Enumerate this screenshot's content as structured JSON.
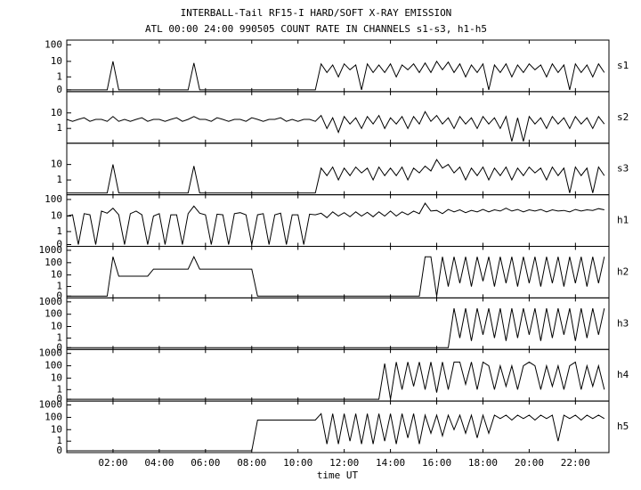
{
  "chart_data": {
    "type": "line",
    "title": "INTERBALL-Tail RF15-I HARD/SOFT X-RAY EMISSION",
    "subtitle": "ATL 00:00 24:00 990505  COUNT RATE IN CHANNELS s1-s3, h1-h5",
    "xlabel": "time UT",
    "yscale": "log",
    "color": "#000000",
    "xlim": [
      0,
      23.45
    ],
    "xticks": [
      {
        "value": 2,
        "label": "02:00"
      },
      {
        "value": 4,
        "label": "04:00"
      },
      {
        "value": 6,
        "label": "06:00"
      },
      {
        "value": 8,
        "label": "08:00"
      },
      {
        "value": 10,
        "label": "10:00"
      },
      {
        "value": 12,
        "label": "12:00"
      },
      {
        "value": 14,
        "label": "14:00"
      },
      {
        "value": 16,
        "label": "16:00"
      },
      {
        "value": 18,
        "label": "18:00"
      },
      {
        "value": 20,
        "label": "20:00"
      },
      {
        "value": 22,
        "label": "22:00"
      }
    ],
    "x": [
      0,
      0.25,
      0.5,
      0.75,
      1,
      1.25,
      1.5,
      1.75,
      2,
      2.25,
      2.5,
      2.75,
      3,
      3.25,
      3.5,
      3.75,
      4,
      4.25,
      4.5,
      4.75,
      5,
      5.25,
      5.5,
      5.75,
      6,
      6.25,
      6.5,
      6.75,
      7,
      7.25,
      7.5,
      7.75,
      8,
      8.25,
      8.5,
      8.75,
      9,
      9.25,
      9.5,
      9.75,
      10,
      10.25,
      10.5,
      10.75,
      11,
      11.25,
      11.5,
      11.75,
      12,
      12.25,
      12.5,
      12.75,
      13,
      13.25,
      13.5,
      13.75,
      14,
      14.25,
      14.5,
      14.75,
      15,
      15.25,
      15.5,
      15.75,
      16,
      16.25,
      16.5,
      16.75,
      17,
      17.25,
      17.5,
      17.75,
      18,
      18.25,
      18.5,
      18.75,
      19,
      19.25,
      19.5,
      19.75,
      20,
      20.25,
      20.5,
      20.75,
      21,
      21.25,
      21.5,
      21.75,
      22,
      22.25,
      22.5,
      22.75,
      23,
      23.25
    ],
    "series": [
      {
        "name": "s1",
        "ylim": [
          0,
          150
        ],
        "yticks": [
          0,
          1,
          10,
          100
        ],
        "values": [
          0,
          0,
          0,
          0,
          0,
          0,
          0,
          0,
          10,
          0,
          0,
          0,
          0,
          0,
          0,
          0,
          0,
          0,
          0,
          0,
          0,
          0,
          8,
          0,
          0,
          0,
          0,
          0,
          0,
          0,
          0,
          0,
          0,
          0,
          0,
          0,
          0,
          0,
          0,
          0,
          0,
          0,
          0,
          0,
          7,
          2,
          6,
          1,
          7,
          3,
          6,
          0,
          7,
          2,
          6,
          2,
          7,
          1,
          6,
          3,
          7,
          2,
          8,
          2,
          10,
          3,
          9,
          2,
          7,
          1,
          6,
          2,
          7,
          0,
          6,
          2,
          7,
          1,
          6,
          2,
          7,
          3,
          6,
          1,
          7,
          2,
          6,
          0,
          7,
          2,
          6,
          1,
          7,
          2
        ]
      },
      {
        "name": "s2",
        "ylim": [
          0,
          150
        ],
        "yticks": [
          1,
          10
        ],
        "values": [
          4,
          3,
          4,
          5,
          3,
          4,
          4,
          3,
          6,
          3,
          4,
          3,
          4,
          5,
          3,
          4,
          4,
          3,
          4,
          5,
          3,
          4,
          6,
          4,
          4,
          3,
          5,
          4,
          3,
          4,
          4,
          3,
          5,
          4,
          3,
          4,
          4,
          5,
          3,
          4,
          3,
          4,
          4,
          3,
          7,
          1,
          5,
          0.5,
          6,
          2,
          5,
          1,
          6,
          2,
          7,
          1,
          5,
          2,
          6,
          1,
          6,
          2,
          12,
          3,
          7,
          2,
          5,
          1,
          6,
          2,
          5,
          1,
          6,
          2,
          5,
          1,
          6,
          0,
          5,
          0,
          6,
          2,
          5,
          1,
          6,
          2,
          5,
          1,
          6,
          2,
          5,
          1,
          6,
          2
        ]
      },
      {
        "name": "s3",
        "ylim": [
          0,
          150
        ],
        "yticks": [
          1,
          10
        ],
        "values": [
          0,
          0,
          0,
          0,
          0,
          0,
          0,
          0,
          10,
          0,
          0,
          0,
          0,
          0,
          0,
          0,
          0,
          0,
          0,
          0,
          0,
          0,
          8,
          0,
          0,
          0,
          0,
          0,
          0,
          0,
          0,
          0,
          0,
          0,
          0,
          0,
          0,
          0,
          0,
          0,
          0,
          0,
          0,
          0,
          6,
          2,
          7,
          1,
          6,
          2,
          7,
          3,
          6,
          1,
          7,
          2,
          6,
          2,
          7,
          1,
          6,
          3,
          8,
          4,
          20,
          6,
          10,
          3,
          7,
          1,
          6,
          2,
          7,
          1,
          6,
          2,
          7,
          1,
          6,
          2,
          7,
          3,
          6,
          1,
          7,
          2,
          6,
          0,
          7,
          2,
          6,
          0,
          7,
          2
        ]
      },
      {
        "name": "h1",
        "ylim": [
          0,
          150
        ],
        "yticks": [
          0,
          1,
          10,
          100
        ],
        "values": [
          10,
          12,
          0,
          14,
          12,
          0,
          20,
          15,
          30,
          12,
          0,
          14,
          20,
          12,
          0,
          10,
          14,
          0,
          12,
          12,
          0,
          14,
          40,
          15,
          12,
          0,
          13,
          12,
          0,
          14,
          16,
          12,
          0,
          12,
          14,
          0,
          12,
          15,
          0,
          12,
          12,
          0,
          13,
          12,
          15,
          8,
          18,
          10,
          16,
          9,
          18,
          10,
          17,
          9,
          18,
          10,
          20,
          10,
          18,
          12,
          20,
          14,
          60,
          20,
          22,
          14,
          25,
          18,
          24,
          16,
          22,
          18,
          25,
          18,
          24,
          20,
          30,
          20,
          25,
          18,
          24,
          20,
          25,
          18,
          24,
          20,
          22,
          18,
          25,
          20,
          24,
          22,
          28,
          24
        ]
      },
      {
        "name": "h2",
        "ylim": [
          0,
          1500
        ],
        "yticks": [
          0,
          1,
          10,
          100,
          1000
        ],
        "values": [
          0,
          0,
          0,
          0,
          0,
          0,
          0,
          0,
          300,
          8,
          8,
          8,
          8,
          8,
          8,
          30,
          30,
          30,
          30,
          30,
          30,
          30,
          300,
          30,
          30,
          30,
          30,
          30,
          30,
          30,
          30,
          30,
          30,
          0,
          0,
          0,
          0,
          0,
          0,
          0,
          0,
          0,
          0,
          0,
          0,
          0,
          0,
          0,
          0,
          0,
          0,
          0,
          0,
          0,
          0,
          0,
          0,
          0,
          0,
          0,
          0,
          0,
          300,
          300,
          0,
          300,
          1,
          300,
          2,
          300,
          1,
          300,
          3,
          300,
          1,
          300,
          2,
          300,
          1,
          300,
          2,
          300,
          1,
          300,
          2,
          300,
          1,
          300,
          2,
          300,
          1,
          300,
          2,
          300
        ]
      },
      {
        "name": "h3",
        "ylim": [
          0,
          1500
        ],
        "yticks": [
          0,
          1,
          10,
          100,
          1000
        ],
        "values": [
          0,
          0,
          0,
          0,
          0,
          0,
          0,
          0,
          0,
          0,
          0,
          0,
          0,
          0,
          0,
          0,
          0,
          0,
          0,
          0,
          0,
          0,
          0,
          0,
          0,
          0,
          0,
          0,
          0,
          0,
          0,
          0,
          0,
          0,
          0,
          0,
          0,
          0,
          0,
          0,
          0,
          0,
          0,
          0,
          0,
          0,
          0,
          0,
          0,
          0,
          0,
          0,
          0,
          0,
          0,
          0,
          0,
          0,
          0,
          0,
          0,
          0,
          0,
          0,
          0,
          0,
          0,
          300,
          1,
          300,
          0.5,
          300,
          2,
          300,
          1,
          300,
          0.5,
          300,
          1,
          300,
          2,
          300,
          0.5,
          300,
          1,
          300,
          2,
          300,
          0.5,
          300,
          1,
          300,
          2,
          300
        ]
      },
      {
        "name": "h4",
        "ylim": [
          0,
          1500
        ],
        "yticks": [
          0,
          1,
          10,
          100,
          1000
        ],
        "values": [
          0,
          0,
          0,
          0,
          0,
          0,
          0,
          0,
          0,
          0,
          0,
          0,
          0,
          0,
          0,
          0,
          0,
          0,
          0,
          0,
          0,
          0,
          0,
          0,
          0,
          0,
          0,
          0,
          0,
          0,
          0,
          0,
          0,
          0,
          0,
          0,
          0,
          0,
          0,
          0,
          0,
          0,
          0,
          0,
          0,
          0,
          0,
          0,
          0,
          0,
          0,
          0,
          0,
          0,
          0,
          150,
          0,
          200,
          1,
          200,
          2,
          200,
          1,
          200,
          0.5,
          200,
          1,
          200,
          200,
          3,
          200,
          1,
          200,
          100,
          1,
          100,
          2,
          100,
          1,
          100,
          200,
          100,
          1,
          100,
          2,
          100,
          1,
          100,
          200,
          1,
          100,
          2,
          100,
          1
        ]
      },
      {
        "name": "h5",
        "ylim": [
          0,
          1500
        ],
        "yticks": [
          0,
          1,
          10,
          100,
          1000
        ],
        "values": [
          0,
          0,
          0,
          0,
          0,
          0,
          0,
          0,
          0,
          0,
          0,
          0,
          0,
          0,
          0,
          0,
          0,
          0,
          0,
          0,
          0,
          0,
          0,
          0,
          0,
          0,
          0,
          0,
          0,
          0,
          0,
          0,
          0,
          60,
          60,
          60,
          60,
          60,
          60,
          60,
          60,
          60,
          60,
          60,
          200,
          0.5,
          200,
          0.5,
          200,
          1,
          200,
          0.5,
          200,
          0.5,
          200,
          1,
          200,
          0.5,
          200,
          2,
          200,
          0.5,
          150,
          5,
          150,
          3,
          150,
          10,
          150,
          5,
          150,
          2,
          150,
          5,
          150,
          80,
          150,
          60,
          150,
          80,
          150,
          60,
          150,
          80,
          150,
          1,
          150,
          80,
          150,
          60,
          150,
          80,
          150,
          80
        ]
      }
    ]
  }
}
